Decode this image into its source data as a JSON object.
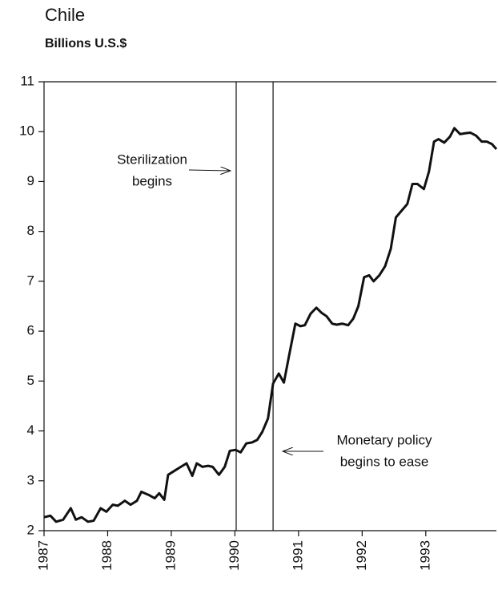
{
  "chart_data": {
    "type": "line",
    "title": "Chile",
    "subtitle": "Billions U.S.$",
    "x": [
      1987.0,
      1987.1,
      1987.19,
      1987.3,
      1987.42,
      1987.5,
      1987.59,
      1987.69,
      1987.78,
      1987.89,
      1987.98,
      1988.08,
      1988.16,
      1988.27,
      1988.36,
      1988.46,
      1988.53,
      1988.64,
      1988.74,
      1988.81,
      1988.89,
      1988.95,
      1989.05,
      1989.15,
      1989.24,
      1989.33,
      1989.4,
      1989.49,
      1989.58,
      1989.65,
      1989.75,
      1989.84,
      1989.92,
      1990.01,
      1990.09,
      1990.18,
      1990.27,
      1990.35,
      1990.43,
      1990.52,
      1990.6,
      1990.69,
      1990.77,
      1990.85,
      1990.95,
      1991.03,
      1991.1,
      1991.19,
      1991.28,
      1991.36,
      1991.44,
      1991.53,
      1991.6,
      1991.69,
      1991.78,
      1991.86,
      1991.94,
      1992.03,
      1992.11,
      1992.18,
      1992.27,
      1992.36,
      1992.45,
      1992.53,
      1992.61,
      1992.71,
      1992.79,
      1992.87,
      1992.97,
      1993.05,
      1993.13,
      1993.2,
      1993.29,
      1993.38,
      1993.45,
      1993.54,
      1993.63,
      1993.7,
      1993.79,
      1993.88,
      1993.96,
      1994.04,
      1994.11
    ],
    "series": [
      {
        "color": "#111111",
        "values": [
          2.27,
          2.3,
          2.18,
          2.22,
          2.45,
          2.22,
          2.27,
          2.18,
          2.2,
          2.45,
          2.38,
          2.52,
          2.5,
          2.6,
          2.52,
          2.6,
          2.78,
          2.72,
          2.65,
          2.75,
          2.62,
          3.12,
          3.2,
          3.28,
          3.35,
          3.1,
          3.35,
          3.28,
          3.3,
          3.28,
          3.12,
          3.28,
          3.6,
          3.62,
          3.57,
          3.75,
          3.77,
          3.82,
          3.98,
          4.25,
          4.95,
          5.15,
          4.97,
          5.5,
          6.15,
          6.1,
          6.12,
          6.35,
          6.47,
          6.37,
          6.3,
          6.15,
          6.13,
          6.15,
          6.12,
          6.25,
          6.5,
          7.08,
          7.12,
          7.0,
          7.12,
          7.3,
          7.65,
          8.28,
          8.4,
          8.55,
          8.95,
          8.95,
          8.85,
          9.2,
          9.8,
          9.85,
          9.78,
          9.9,
          10.07,
          9.95,
          9.97,
          9.98,
          9.92,
          9.8,
          9.8,
          9.75,
          9.65
        ]
      }
    ],
    "xlim": [
      1987,
      1994.11
    ],
    "xticks": [
      1987,
      1988,
      1989,
      1990,
      1991,
      1992,
      1993
    ],
    "ylim": [
      2,
      11
    ],
    "yticks": [
      2,
      3,
      4,
      5,
      6,
      7,
      8,
      9,
      10,
      11
    ],
    "vlines": [
      1990.02,
      1990.6
    ],
    "annotations": [
      {
        "lines": [
          "Sterilization",
          "begins"
        ]
      },
      {
        "lines": [
          "Monetary policy",
          "begins to ease"
        ]
      }
    ]
  }
}
